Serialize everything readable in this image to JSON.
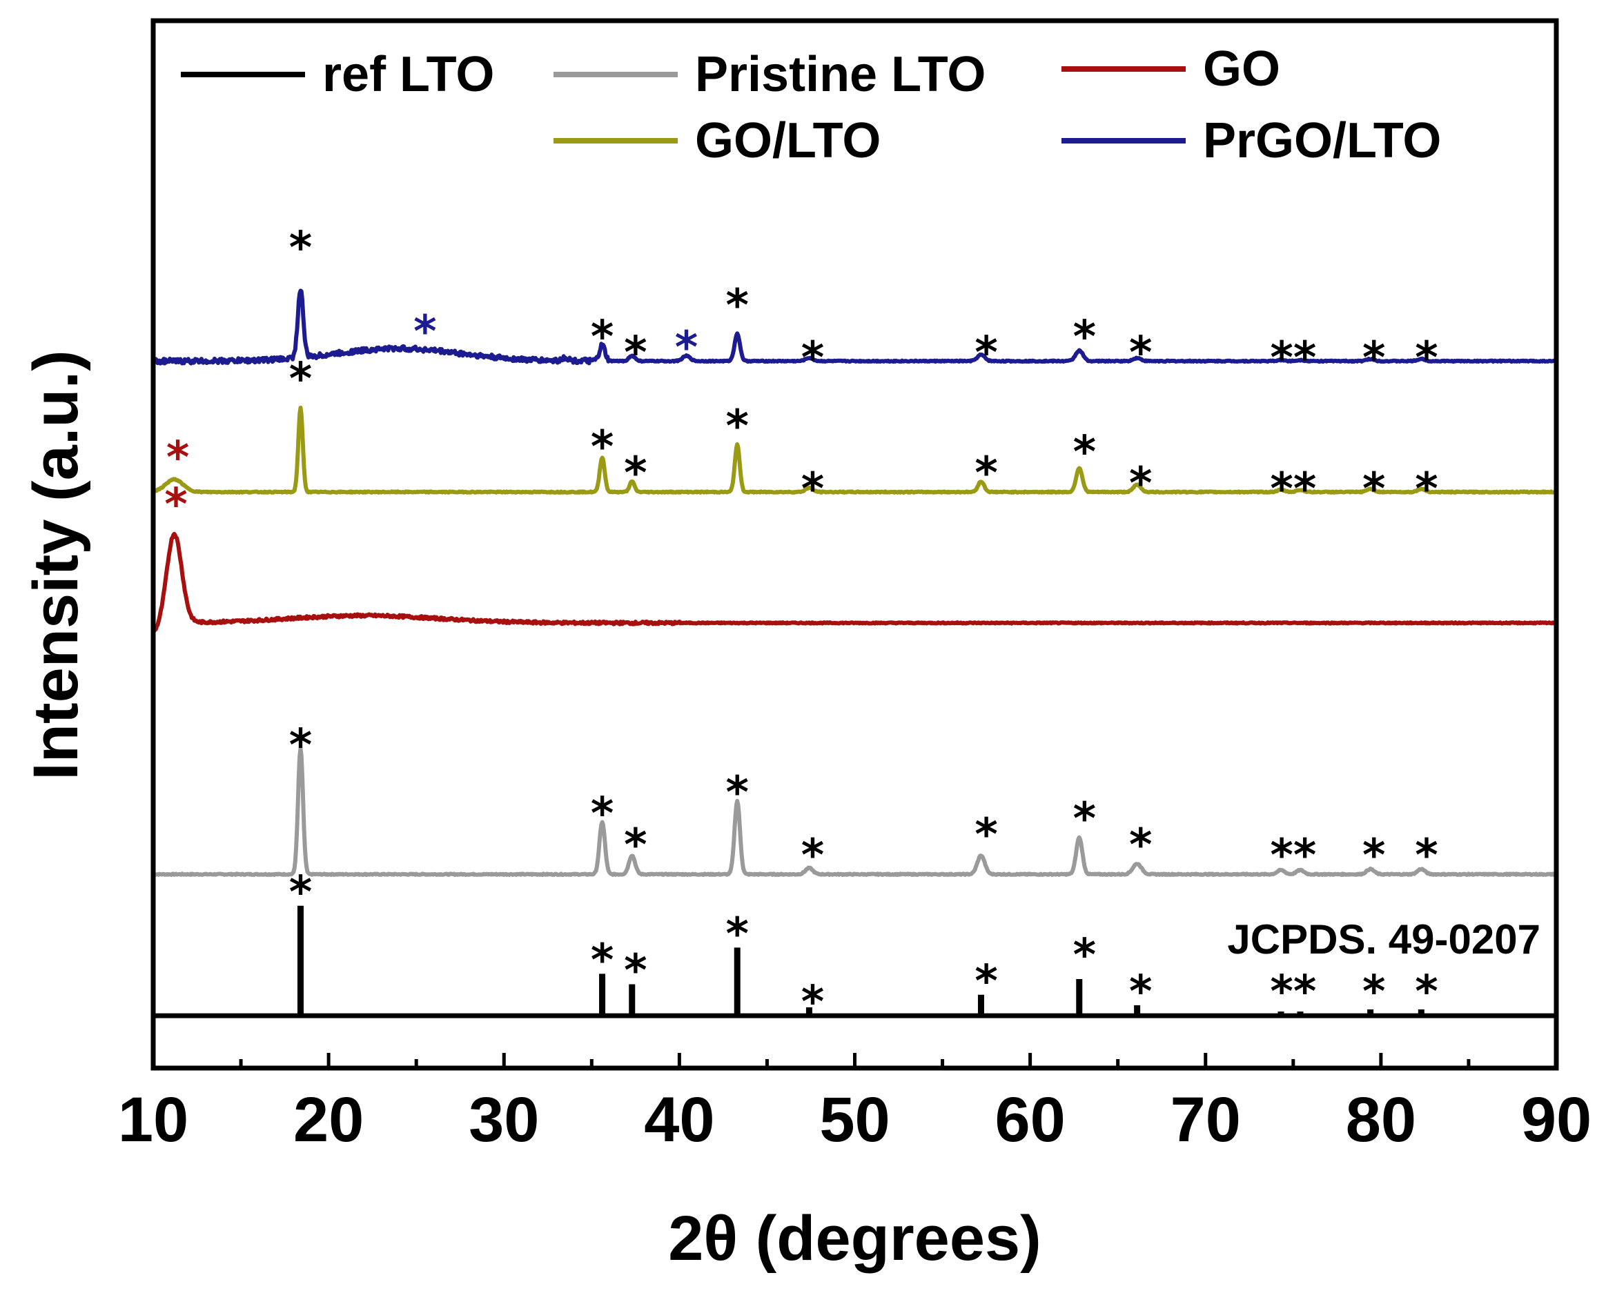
{
  "chart_data": {
    "type": "line",
    "title": "",
    "xlabel": "2θ (degrees)",
    "ylabel": "Intensity (a.u.)",
    "xlim": [
      10,
      90
    ],
    "ylim": [
      0,
      100
    ],
    "xticks": [
      10,
      20,
      30,
      40,
      50,
      60,
      70,
      80,
      90
    ],
    "xtick_labels": [
      "10",
      "20",
      "30",
      "40",
      "50",
      "60",
      "70",
      "80",
      "90"
    ],
    "grid": false,
    "legend": "top",
    "annotation": "JCPDS. 49-0207",
    "colors": {
      "ref": "#000000",
      "pristine": "#9a9a9a",
      "go": "#a81010",
      "golto": "#9a9a14",
      "prgolto": "#1c1c90"
    },
    "series": [
      {
        "name": "ref LTO",
        "key": "ref",
        "style": "sticks",
        "baseline": 5,
        "peaks": [
          [
            18.4,
            10.5
          ],
          [
            35.6,
            4.0
          ],
          [
            37.3,
            3.0
          ],
          [
            43.3,
            6.5
          ],
          [
            47.4,
            0.8
          ],
          [
            57.2,
            2.0
          ],
          [
            62.8,
            3.5
          ],
          [
            66.1,
            1.0
          ],
          [
            74.3,
            0.4
          ],
          [
            75.4,
            0.4
          ],
          [
            79.4,
            0.6
          ],
          [
            82.3,
            0.6
          ]
        ],
        "markers": [
          {
            "x": 18.4,
            "y": 18.0,
            "text": "*",
            "color": "#000000"
          },
          {
            "x": 35.6,
            "y": 11.5,
            "text": "*",
            "color": "#000000"
          },
          {
            "x": 37.5,
            "y": 10.5,
            "text": "*",
            "color": "#000000"
          },
          {
            "x": 43.3,
            "y": 14.0,
            "text": "*",
            "color": "#000000"
          },
          {
            "x": 47.6,
            "y": 7.5,
            "text": "*",
            "color": "#000000"
          },
          {
            "x": 57.5,
            "y": 9.5,
            "text": "*",
            "color": "#000000"
          },
          {
            "x": 63.1,
            "y": 12.0,
            "text": "*",
            "color": "#000000"
          },
          {
            "x": 66.3,
            "y": 8.5,
            "text": "*",
            "color": "#000000"
          },
          {
            "x": 75.0,
            "y": 8.5,
            "text": "**",
            "color": "#000000"
          },
          {
            "x": 79.6,
            "y": 8.5,
            "text": "*",
            "color": "#000000"
          },
          {
            "x": 82.6,
            "y": 8.5,
            "text": "*",
            "color": "#000000"
          }
        ]
      },
      {
        "name": "Pristine LTO",
        "key": "pristine",
        "style": "line",
        "baseline": 18.5,
        "background": [],
        "peaks": [
          [
            18.4,
            12.0,
            0.2
          ],
          [
            35.6,
            5.0,
            0.22
          ],
          [
            37.3,
            1.8,
            0.25
          ],
          [
            43.3,
            7.0,
            0.22
          ],
          [
            47.4,
            0.6,
            0.3
          ],
          [
            57.2,
            1.8,
            0.3
          ],
          [
            62.8,
            3.5,
            0.25
          ],
          [
            66.1,
            1.0,
            0.35
          ],
          [
            74.3,
            0.4,
            0.3
          ],
          [
            75.4,
            0.4,
            0.3
          ],
          [
            79.4,
            0.5,
            0.3
          ],
          [
            82.3,
            0.5,
            0.3
          ]
        ],
        "markers": [
          {
            "x": 18.4,
            "y": 32.0,
            "text": "*",
            "color": "#000000"
          },
          {
            "x": 35.6,
            "y": 25.5,
            "text": "*",
            "color": "#000000"
          },
          {
            "x": 37.5,
            "y": 22.5,
            "text": "*",
            "color": "#000000"
          },
          {
            "x": 43.3,
            "y": 27.5,
            "text": "*",
            "color": "#000000"
          },
          {
            "x": 47.6,
            "y": 21.5,
            "text": "*",
            "color": "#000000"
          },
          {
            "x": 57.5,
            "y": 23.5,
            "text": "*",
            "color": "#000000"
          },
          {
            "x": 63.1,
            "y": 25.0,
            "text": "*",
            "color": "#000000"
          },
          {
            "x": 66.3,
            "y": 22.5,
            "text": "*",
            "color": "#000000"
          },
          {
            "x": 75.0,
            "y": 21.5,
            "text": "**",
            "color": "#000000"
          },
          {
            "x": 79.6,
            "y": 21.5,
            "text": "*",
            "color": "#000000"
          },
          {
            "x": 82.6,
            "y": 21.5,
            "text": "*",
            "color": "#000000"
          }
        ]
      },
      {
        "name": "GO",
        "key": "go",
        "style": "line",
        "baseline": 42.5,
        "background": [
          [
            22.0,
            0.7,
            6.0
          ],
          [
            10.0,
            -1.0,
            0.6
          ]
        ],
        "peaks": [
          [
            11.2,
            8.5,
            0.6
          ]
        ],
        "markers": [
          {
            "x": 11.3,
            "y": 55.0,
            "text": "*",
            "color": "#a81010"
          }
        ]
      },
      {
        "name": "GO/LTO",
        "key": "golto",
        "style": "line",
        "baseline": 55.0,
        "background": [],
        "peaks": [
          [
            11.2,
            1.2,
            0.7
          ],
          [
            18.4,
            8.0,
            0.18
          ],
          [
            35.6,
            3.3,
            0.2
          ],
          [
            37.3,
            1.0,
            0.2
          ],
          [
            43.3,
            4.5,
            0.2
          ],
          [
            47.4,
            0.4,
            0.3
          ],
          [
            57.2,
            1.0,
            0.25
          ],
          [
            62.8,
            2.3,
            0.25
          ],
          [
            66.1,
            0.7,
            0.3
          ],
          [
            74.3,
            0.2,
            0.3
          ],
          [
            75.4,
            0.2,
            0.3
          ],
          [
            79.4,
            0.3,
            0.3
          ],
          [
            82.3,
            0.3,
            0.3
          ]
        ],
        "markers": [
          {
            "x": 11.4,
            "y": 59.5,
            "text": "*",
            "color": "#a81010"
          },
          {
            "x": 18.4,
            "y": 67.0,
            "text": "*",
            "color": "#000000"
          },
          {
            "x": 35.6,
            "y": 60.5,
            "text": "*",
            "color": "#000000"
          },
          {
            "x": 37.5,
            "y": 58.0,
            "text": "*",
            "color": "#000000"
          },
          {
            "x": 43.3,
            "y": 62.5,
            "text": "*",
            "color": "#000000"
          },
          {
            "x": 47.6,
            "y": 56.5,
            "text": "*",
            "color": "#000000"
          },
          {
            "x": 57.5,
            "y": 58.0,
            "text": "*",
            "color": "#000000"
          },
          {
            "x": 63.1,
            "y": 60.0,
            "text": "*",
            "color": "#000000"
          },
          {
            "x": 66.3,
            "y": 57.0,
            "text": "*",
            "color": "#000000"
          },
          {
            "x": 75.0,
            "y": 56.5,
            "text": "**",
            "color": "#000000"
          },
          {
            "x": 79.6,
            "y": 56.5,
            "text": "*",
            "color": "#000000"
          },
          {
            "x": 82.6,
            "y": 56.5,
            "text": "*",
            "color": "#000000"
          }
        ]
      },
      {
        "name": "PrGO/LTO",
        "key": "prgolto",
        "style": "line",
        "baseline": 67.5,
        "background": [
          [
            24.0,
            1.2,
            5.0
          ]
        ],
        "peaks": [
          [
            18.4,
            6.5,
            0.22
          ],
          [
            33.5,
            0.3,
            0.25
          ],
          [
            35.6,
            1.5,
            0.22
          ],
          [
            37.3,
            0.5,
            0.25
          ],
          [
            40.4,
            0.5,
            0.3
          ],
          [
            43.3,
            2.6,
            0.22
          ],
          [
            47.4,
            0.3,
            0.3
          ],
          [
            57.2,
            0.6,
            0.3
          ],
          [
            62.8,
            1.0,
            0.3
          ],
          [
            66.1,
            0.3,
            0.3
          ],
          [
            74.3,
            0.1,
            0.3
          ],
          [
            75.4,
            0.1,
            0.3
          ],
          [
            79.4,
            0.2,
            0.3
          ],
          [
            82.3,
            0.2,
            0.3
          ]
        ],
        "markers": [
          {
            "x": 18.4,
            "y": 79.5,
            "text": "*",
            "color": "#000000"
          },
          {
            "x": 25.5,
            "y": 71.5,
            "text": "*",
            "color": "#1c1c90"
          },
          {
            "x": 35.6,
            "y": 71.0,
            "text": "*",
            "color": "#000000"
          },
          {
            "x": 37.5,
            "y": 69.5,
            "text": "*",
            "color": "#000000"
          },
          {
            "x": 40.4,
            "y": 70.0,
            "text": "*",
            "color": "#1c1c90"
          },
          {
            "x": 43.3,
            "y": 74.0,
            "text": "*",
            "color": "#000000"
          },
          {
            "x": 47.6,
            "y": 69.0,
            "text": "*",
            "color": "#000000"
          },
          {
            "x": 57.5,
            "y": 69.5,
            "text": "*",
            "color": "#000000"
          },
          {
            "x": 63.1,
            "y": 71.0,
            "text": "*",
            "color": "#000000"
          },
          {
            "x": 66.3,
            "y": 69.5,
            "text": "*",
            "color": "#000000"
          },
          {
            "x": 75.0,
            "y": 69.0,
            "text": "**",
            "color": "#000000"
          },
          {
            "x": 79.6,
            "y": 69.0,
            "text": "*",
            "color": "#000000"
          },
          {
            "x": 82.6,
            "y": 69.0,
            "text": "*",
            "color": "#000000"
          }
        ]
      }
    ]
  }
}
